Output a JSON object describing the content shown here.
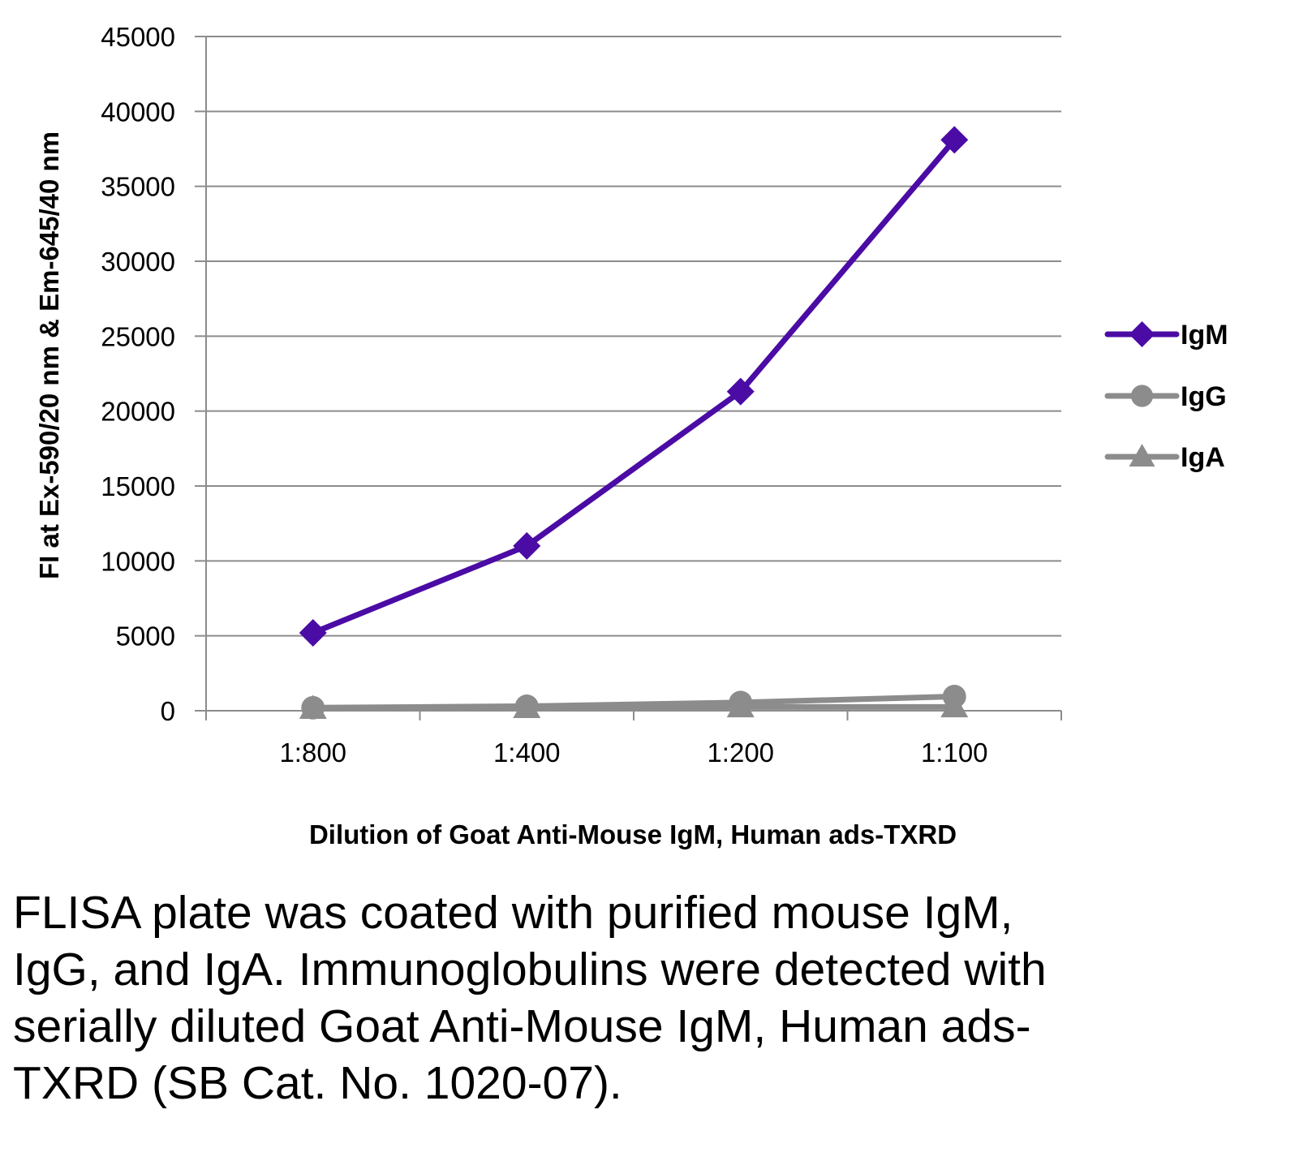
{
  "chart_data": {
    "type": "line",
    "categories": [
      "1:800",
      "1:400",
      "1:200",
      "1:100"
    ],
    "series": [
      {
        "name": "IgM",
        "values": [
          5200,
          11000,
          21300,
          38100
        ],
        "color": "#4B0BA5",
        "marker": "diamond"
      },
      {
        "name": "IgG",
        "values": [
          200,
          300,
          550,
          950
        ],
        "color": "#8C8C8C",
        "marker": "circle"
      },
      {
        "name": "IgA",
        "values": [
          150,
          200,
          250,
          250
        ],
        "color": "#8C8C8C",
        "marker": "triangle"
      }
    ],
    "title": "",
    "xlabel": "Dilution of Goat Anti-Mouse IgM, Human ads-TXRD",
    "ylabel": "FI at Ex-590/20 nm & Em-645/40 nm",
    "ylim": [
      0,
      45000
    ],
    "yticks": [
      "0",
      "5000",
      "10000",
      "15000",
      "20000",
      "25000",
      "30000",
      "35000",
      "40000",
      "45000"
    ],
    "grid": true,
    "legend_position": "right"
  },
  "caption": "FLISA plate was coated with purified mouse IgM, IgG, and IgA.  Immunoglobulins were detected with serially diluted Goat Anti-Mouse IgM, Human ads-TXRD (SB Cat. No. 1020-07)."
}
